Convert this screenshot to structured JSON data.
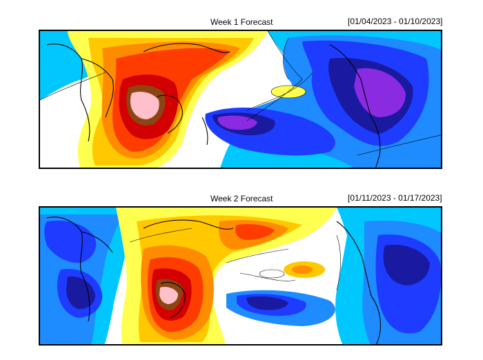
{
  "panels": [
    {
      "title": "Week 1 Forecast",
      "dates": "[01/04/2023 - 01/10/2023]"
    },
    {
      "title": "Week 2 Forecast",
      "dates": "[01/11/2023 - 01/17/2023]"
    }
  ],
  "colors": {
    "strong_neg": "#8a2be2",
    "neg3": "#1a1aa0",
    "neg2": "#1e3cff",
    "neg1": "#1e8cff",
    "neg0": "#00c8ff",
    "near_zero": "#ffffff",
    "pos0": "#ffff50",
    "pos1": "#ffc800",
    "pos2": "#ff8c00",
    "pos3": "#ff3c00",
    "pos4": "#d20000",
    "pos5": "#8b4513",
    "pos6": "#ffc0cb"
  }
}
